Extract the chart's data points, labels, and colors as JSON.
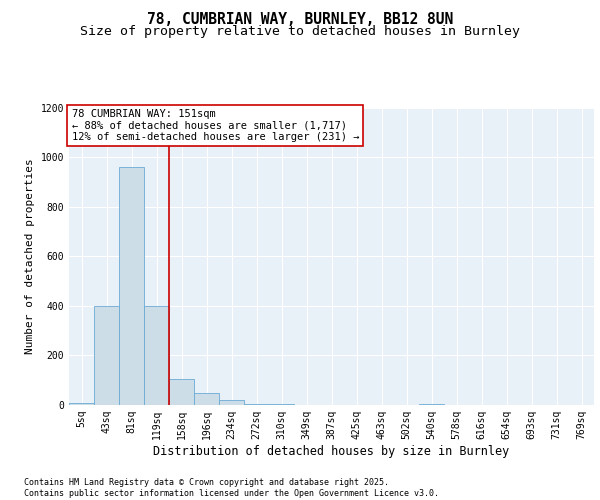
{
  "title_line1": "78, CUMBRIAN WAY, BURNLEY, BB12 8UN",
  "title_line2": "Size of property relative to detached houses in Burnley",
  "xlabel": "Distribution of detached houses by size in Burnley",
  "ylabel": "Number of detached properties",
  "bar_labels": [
    "5sq",
    "43sq",
    "81sq",
    "119sq",
    "158sq",
    "196sq",
    "234sq",
    "272sq",
    "310sq",
    "349sq",
    "387sq",
    "425sq",
    "463sq",
    "502sq",
    "540sq",
    "578sq",
    "616sq",
    "654sq",
    "693sq",
    "731sq",
    "769sq"
  ],
  "bar_values": [
    10,
    400,
    960,
    400,
    105,
    50,
    20,
    5,
    5,
    0,
    0,
    0,
    0,
    0,
    5,
    0,
    0,
    0,
    0,
    0,
    0
  ],
  "bar_color": "#ccdde8",
  "bar_edge_color": "#6aaad4",
  "vline_x": 3.5,
  "vline_color": "#cc0000",
  "annotation_text": "78 CUMBRIAN WAY: 151sqm\n← 88% of detached houses are smaller (1,717)\n12% of semi-detached houses are larger (231) →",
  "annotation_box_color": "#cc0000",
  "ylim": [
    0,
    1200
  ],
  "yticks": [
    0,
    200,
    400,
    600,
    800,
    1000,
    1200
  ],
  "plot_bg_color": "#e8f0f8",
  "fig_bg_color": "#ffffff",
  "footnote": "Contains HM Land Registry data © Crown copyright and database right 2025.\nContains public sector information licensed under the Open Government Licence v3.0.",
  "title_fontsize": 10.5,
  "subtitle_fontsize": 9.5,
  "annotation_fontsize": 7.5,
  "footnote_fontsize": 6.0,
  "ylabel_fontsize": 8,
  "xlabel_fontsize": 8.5,
  "tick_fontsize": 7
}
